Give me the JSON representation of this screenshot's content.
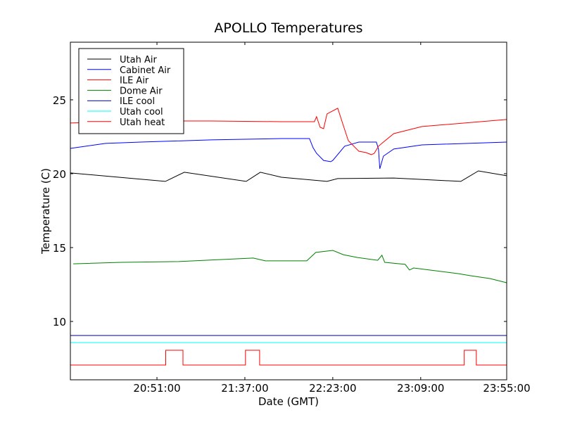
{
  "chart_data": {
    "type": "line",
    "title": "APOLLO Temperatures",
    "xlabel": "Date (GMT)",
    "ylabel": "Temperature (C)",
    "x_units": "minutes after 20:00 GMT",
    "xlim": [
      5.7,
      234
    ],
    "ylim": [
      6.05,
      28.9
    ],
    "grid": false,
    "legend_position": "top-left",
    "xticks": [
      {
        "value": 51,
        "label": "20:51:00"
      },
      {
        "value": 97,
        "label": "21:37:00"
      },
      {
        "value": 143,
        "label": "22:23:00"
      },
      {
        "value": 189,
        "label": "23:09:00"
      },
      {
        "value": 235,
        "label": "23:55:00"
      }
    ],
    "yticks": [
      {
        "value": 10,
        "label": "10"
      },
      {
        "value": 15,
        "label": "15"
      },
      {
        "value": 20,
        "label": "20"
      },
      {
        "value": 25,
        "label": "25"
      }
    ],
    "series": [
      {
        "name": "Utah Air",
        "color": "#000000",
        "x": [
          5.7,
          55.4,
          65.3,
          97.7,
          105.1,
          116.1,
          140.0,
          145.6,
          174.9,
          210.0,
          219.2,
          234
        ],
        "y": [
          20.05,
          19.48,
          20.1,
          19.48,
          20.1,
          19.76,
          19.48,
          19.67,
          19.71,
          19.48,
          20.19,
          19.86
        ]
      },
      {
        "name": "Cabinet Air",
        "color": "#0000ff",
        "x": [
          5.7,
          24.1,
          42.5,
          79.3,
          116.1,
          130.8,
          132.7,
          134.5,
          138.2,
          141.9,
          143.0,
          149.2,
          156.6,
          165.8,
          166.9,
          167.6,
          169.5,
          174.9,
          189.7,
          234
        ],
        "y": [
          21.71,
          22.05,
          22.14,
          22.29,
          22.38,
          22.38,
          21.76,
          21.38,
          20.9,
          20.81,
          20.9,
          21.86,
          22.14,
          22.14,
          21.67,
          20.33,
          21.19,
          21.67,
          21.95,
          22.14
        ]
      },
      {
        "name": "ILE Air",
        "color": "#ff0000",
        "x": [
          5.7,
          42.5,
          79.3,
          116.1,
          133.4,
          134.5,
          136.4,
          138.2,
          140.0,
          145.6,
          148.1,
          151.1,
          156.6,
          160.3,
          163.2,
          164.7,
          166.9,
          169.5,
          174.9,
          189.7,
          234
        ],
        "y": [
          23.43,
          23.57,
          23.57,
          23.52,
          23.52,
          23.86,
          23.14,
          23.05,
          24.05,
          24.43,
          23.43,
          22.24,
          21.52,
          21.43,
          21.29,
          21.38,
          21.86,
          22.14,
          22.71,
          23.19,
          23.67
        ]
      },
      {
        "name": "Dome Air",
        "color": "#008000",
        "x": [
          7.2,
          32.2,
          62.4,
          101.4,
          107.7,
          129.4,
          134.1,
          143.0,
          148.5,
          155.9,
          166.5,
          168.7,
          170.2,
          180.9,
          183.1,
          185.3,
          208.5,
          214.8,
          225.4,
          234
        ],
        "y": [
          13.9,
          14.0,
          14.05,
          14.29,
          14.1,
          14.1,
          14.67,
          14.81,
          14.52,
          14.33,
          14.14,
          14.48,
          14.0,
          13.86,
          13.48,
          13.62,
          13.24,
          13.1,
          12.9,
          12.62
        ]
      },
      {
        "name": "ILE cool",
        "color": "#000080",
        "x": [
          5.7,
          234
        ],
        "y": [
          9.05,
          9.05
        ]
      },
      {
        "name": "Utah cool",
        "color": "#00ffff",
        "x": [
          5.7,
          234
        ],
        "y": [
          8.57,
          8.57
        ]
      },
      {
        "name": "Utah heat",
        "color": "#ff0000",
        "step": true,
        "x": [
          5.7,
          55.6,
          55.6,
          64.6,
          64.6,
          97.3,
          97.3,
          104.7,
          104.7,
          211.8,
          211.8,
          218.1,
          218.1,
          234
        ],
        "y": [
          7.05,
          7.05,
          8.05,
          8.05,
          7.05,
          7.05,
          8.05,
          8.05,
          7.05,
          7.05,
          8.05,
          8.05,
          7.05,
          7.05
        ]
      }
    ]
  }
}
